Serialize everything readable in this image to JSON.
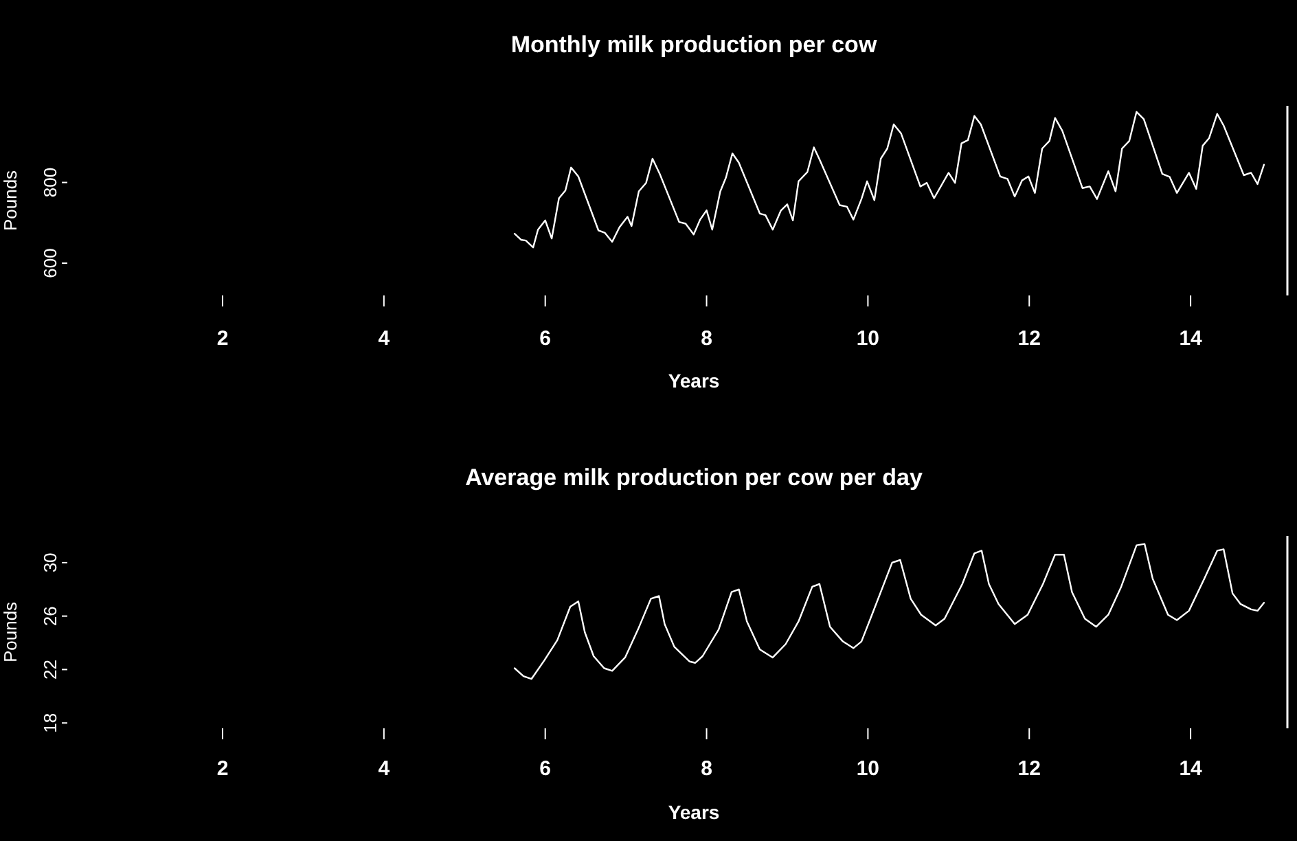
{
  "chart_data": [
    {
      "type": "line",
      "title": "Monthly milk production per cow",
      "xlabel": "Years",
      "ylabel": "Pounds",
      "xlim": [
        2,
        15.2
      ],
      "xticks": [
        2,
        4,
        6,
        8,
        10,
        12,
        14
      ],
      "ylim": [
        520,
        990
      ],
      "yticks": [
        600,
        800
      ],
      "grid": false,
      "marker": "none",
      "line_style": "solid",
      "series": [
        {
          "color": "#ffffff",
          "x": [
            5.62,
            5.7,
            5.76,
            5.85,
            5.91,
            6.0,
            6.08,
            6.17,
            6.25,
            6.32,
            6.41,
            6.66,
            6.74,
            6.83,
            6.92,
            7.02,
            7.07,
            7.16,
            7.25,
            7.33,
            7.42,
            7.66,
            7.74,
            7.84,
            7.92,
            8.0,
            8.07,
            8.17,
            8.24,
            8.32,
            8.4,
            8.66,
            8.73,
            8.82,
            8.92,
            9.0,
            9.07,
            9.14,
            9.25,
            9.33,
            9.4,
            9.65,
            9.74,
            9.82,
            9.92,
            9.99,
            10.08,
            10.16,
            10.24,
            10.32,
            10.41,
            10.65,
            10.73,
            10.82,
            11.0,
            11.08,
            11.16,
            11.24,
            11.32,
            11.4,
            11.64,
            11.73,
            11.82,
            11.91,
            11.99,
            12.07,
            12.16,
            12.25,
            12.32,
            12.41,
            12.66,
            12.75,
            12.84,
            12.98,
            13.07,
            13.15,
            13.24,
            13.33,
            13.42,
            13.65,
            13.74,
            13.83,
            13.98,
            14.07,
            14.15,
            14.23,
            14.33,
            14.41,
            14.66,
            14.75,
            14.83,
            14.91
          ],
          "values": [
            673,
            658,
            656,
            639,
            683,
            706,
            661,
            761,
            780,
            837,
            815,
            681,
            675,
            653,
            689,
            715,
            692,
            778,
            799,
            859,
            821,
            702,
            698,
            671,
            708,
            731,
            683,
            778,
            812,
            872,
            849,
            723,
            719,
            683,
            730,
            746,
            706,
            803,
            826,
            887,
            857,
            744,
            740,
            708,
            759,
            803,
            756,
            859,
            884,
            944,
            922,
            790,
            799,
            761,
            824,
            799,
            897,
            905,
            965,
            944,
            815,
            809,
            765,
            805,
            815,
            774,
            884,
            903,
            960,
            928,
            786,
            790,
            759,
            828,
            778,
            884,
            903,
            975,
            957,
            821,
            814,
            774,
            824,
            784,
            891,
            910,
            970,
            941,
            818,
            824,
            796,
            844
          ]
        }
      ]
    },
    {
      "type": "line",
      "title": "Average milk production per cow per day",
      "xlabel": "Years",
      "ylabel": "Pounds",
      "xlim": [
        2,
        15.2
      ],
      "xticks": [
        2,
        4,
        6,
        8,
        10,
        12,
        14
      ],
      "ylim": [
        17.6,
        32
      ],
      "yticks": [
        18,
        22,
        26,
        30
      ],
      "grid": false,
      "marker": "none",
      "line_style": "solid",
      "series": [
        {
          "color": "#ffffff",
          "x": [
            5.62,
            5.73,
            5.83,
            5.99,
            6.15,
            6.31,
            6.41,
            6.49,
            6.6,
            6.73,
            6.83,
            6.99,
            7.15,
            7.31,
            7.41,
            7.48,
            7.6,
            7.79,
            7.86,
            7.95,
            8.15,
            8.31,
            8.4,
            8.5,
            8.66,
            8.82,
            8.98,
            9.14,
            9.31,
            9.4,
            9.53,
            9.69,
            9.82,
            9.92,
            10.05,
            10.3,
            10.4,
            10.53,
            10.66,
            10.84,
            10.95,
            11.17,
            11.32,
            11.41,
            11.5,
            11.62,
            11.82,
            11.98,
            12.17,
            12.32,
            12.43,
            12.53,
            12.69,
            12.83,
            12.98,
            13.14,
            13.33,
            13.43,
            13.53,
            13.72,
            13.83,
            13.98,
            14.17,
            14.33,
            14.41,
            14.52,
            14.62,
            14.75,
            14.83,
            14.91
          ],
          "values": [
            22.1,
            21.5,
            21.3,
            22.7,
            24.2,
            26.7,
            27.1,
            24.8,
            23.0,
            22.1,
            21.9,
            22.9,
            25.0,
            27.3,
            27.5,
            25.4,
            23.7,
            22.6,
            22.5,
            23.0,
            25.0,
            27.8,
            28.0,
            25.6,
            23.5,
            22.9,
            23.9,
            25.6,
            28.2,
            28.4,
            25.2,
            24.1,
            23.6,
            24.1,
            26.1,
            30.0,
            30.2,
            27.3,
            26.1,
            25.3,
            25.8,
            28.4,
            30.7,
            30.9,
            28.4,
            26.9,
            25.4,
            26.1,
            28.4,
            30.6,
            30.6,
            27.8,
            25.8,
            25.2,
            26.1,
            28.2,
            31.3,
            31.4,
            28.8,
            26.1,
            25.7,
            26.4,
            28.8,
            30.9,
            31.0,
            27.7,
            26.9,
            26.5,
            26.4,
            27.0
          ]
        }
      ]
    }
  ]
}
